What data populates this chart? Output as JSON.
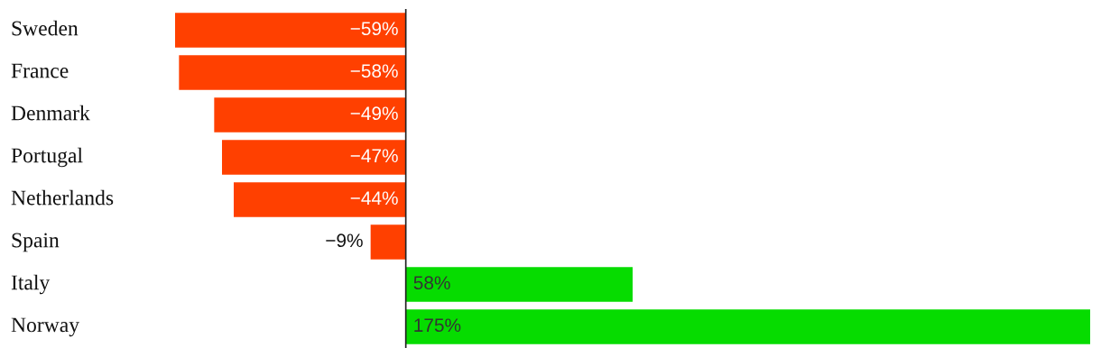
{
  "chart_data": {
    "type": "bar",
    "orientation": "horizontal",
    "categories": [
      "Sweden",
      "France",
      "Denmark",
      "Portugal",
      "Netherlands",
      "Spain",
      "Italy",
      "Norway"
    ],
    "values": [
      -59,
      -58,
      -49,
      -47,
      -44,
      -9,
      58,
      175
    ],
    "colors": [
      "#ff4000",
      "#ff4000",
      "#ff4000",
      "#ff4000",
      "#ff4000",
      "#ff4000",
      "#06dc00",
      "#06dc00"
    ],
    "value_labels": [
      "−59%",
      "−58%",
      "−49%",
      "−47%",
      "−44%",
      "−9%",
      "58%",
      "175%"
    ]
  }
}
